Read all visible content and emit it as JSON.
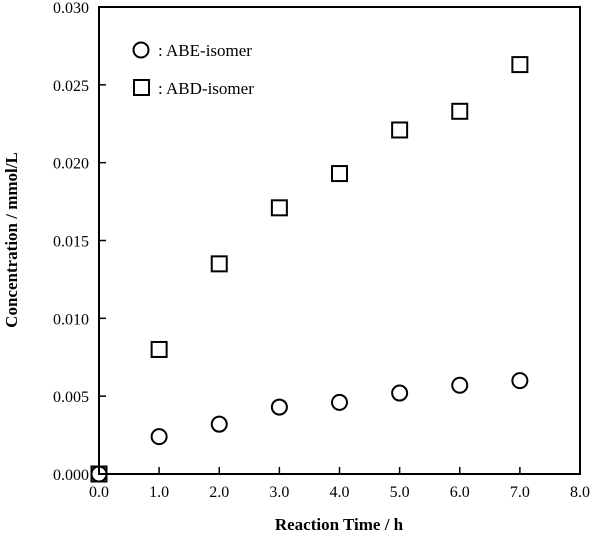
{
  "chart_data": {
    "type": "scatter",
    "xlabel": "Reaction Time / h",
    "ylabel": "Concentration / mmol/L",
    "xlim": [
      0.0,
      8.0
    ],
    "ylim": [
      0.0,
      0.03
    ],
    "x_ticks": [
      "0.0",
      "1.0",
      "2.0",
      "3.0",
      "4.0",
      "5.0",
      "6.0",
      "7.0",
      "8.0"
    ],
    "y_ticks": [
      "0.000",
      "0.005",
      "0.010",
      "0.015",
      "0.020",
      "0.025",
      "0.030"
    ],
    "grid": false,
    "legend_position": "top-left",
    "series": [
      {
        "name": ": ABE-isomer",
        "marker": "circle",
        "x": [
          0,
          1,
          2,
          3,
          4,
          5,
          6,
          7
        ],
        "y": [
          0.0,
          0.0024,
          0.0032,
          0.0043,
          0.0046,
          0.0052,
          0.0057,
          0.006
        ]
      },
      {
        "name": ": ABD-isomer",
        "marker": "square",
        "x": [
          0,
          1,
          2,
          3,
          4,
          5,
          6,
          7
        ],
        "y": [
          0.0,
          0.008,
          0.0135,
          0.0171,
          0.0193,
          0.0221,
          0.0233,
          0.0263
        ]
      }
    ]
  }
}
